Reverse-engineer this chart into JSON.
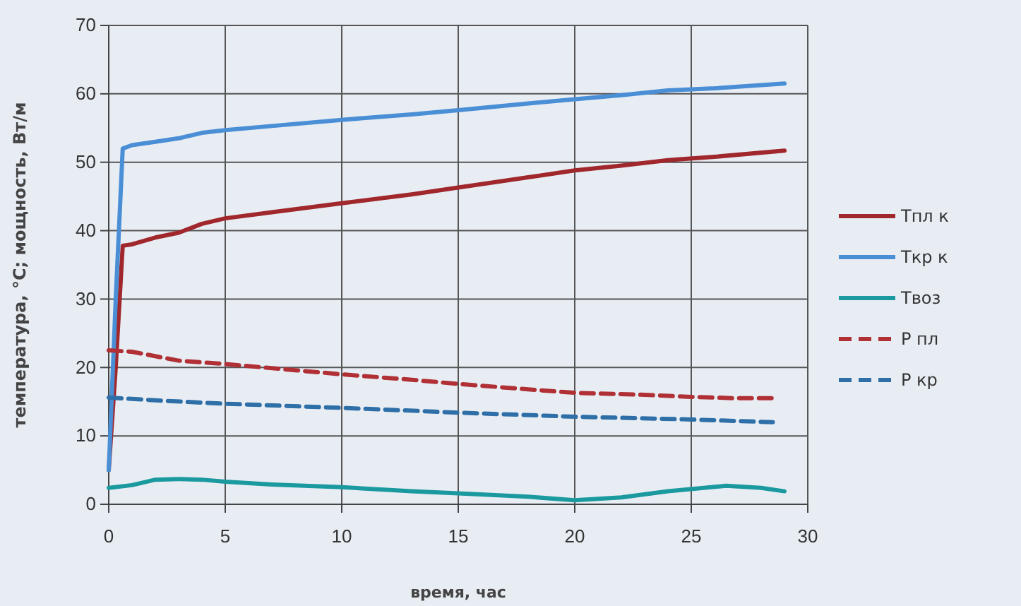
{
  "chart_data": {
    "type": "line",
    "xlabel": "время, час",
    "ylabel": "температура, °C; мощность, Вт/м",
    "xlim": [
      0,
      30
    ],
    "xticks": [
      0,
      5,
      10,
      15,
      20,
      25,
      30
    ],
    "ylim": [
      0,
      70
    ],
    "yticks": [
      0,
      10,
      20,
      30,
      40,
      50,
      60,
      70
    ],
    "grid": true,
    "legend": "right",
    "marker": "none",
    "series": [
      {
        "name": "Tпл к",
        "color": "#a0282d",
        "line_style": "solid",
        "x": [
          0,
          0.3,
          0.6,
          1,
          2,
          3,
          4,
          5,
          7,
          10,
          13,
          15,
          18,
          20,
          22,
          24,
          26,
          29
        ],
        "values": [
          5,
          20,
          37.8,
          38,
          39,
          39.7,
          41,
          41.8,
          42.7,
          44,
          45.3,
          46.3,
          47.8,
          48.8,
          49.5,
          50.3,
          50.8,
          51.7
        ]
      },
      {
        "name": "Tкр к",
        "color": "#4a8fd6",
        "line_style": "solid",
        "x": [
          0,
          0.3,
          0.6,
          1,
          2,
          3,
          4,
          5,
          7,
          10,
          13,
          15,
          18,
          20,
          22,
          24,
          26,
          29
        ],
        "values": [
          5,
          30,
          52,
          52.5,
          53,
          53.5,
          54.3,
          54.7,
          55.3,
          56.2,
          57,
          57.6,
          58.6,
          59.2,
          59.8,
          60.5,
          60.8,
          61.5
        ]
      },
      {
        "name": "Tвоз",
        "color": "#1a9a9e",
        "line_style": "solid",
        "x": [
          0,
          1,
          2,
          3,
          4,
          5,
          7,
          10,
          13,
          15,
          18,
          20,
          22,
          24,
          26.5,
          28,
          29
        ],
        "values": [
          2.4,
          2.8,
          3.6,
          3.7,
          3.6,
          3.3,
          2.9,
          2.5,
          1.9,
          1.6,
          1.1,
          0.6,
          1,
          1.9,
          2.7,
          2.4,
          1.9
        ]
      },
      {
        "name": "Р пл",
        "color": "#b03035",
        "line_style": "dashed",
        "x": [
          0,
          1,
          3,
          5,
          8,
          10,
          13,
          15,
          18,
          20,
          23,
          25,
          27,
          28.5
        ],
        "values": [
          22.5,
          22.3,
          21,
          20.5,
          19.6,
          19,
          18.2,
          17.6,
          16.8,
          16.3,
          16,
          15.7,
          15.5,
          15.5
        ]
      },
      {
        "name": "Р кр",
        "color": "#2e6fa8",
        "line_style": "dashed",
        "x": [
          0,
          2,
          5,
          10,
          15,
          20,
          25,
          28.5
        ],
        "values": [
          15.6,
          15.2,
          14.7,
          14.1,
          13.4,
          12.8,
          12.4,
          12
        ]
      }
    ]
  }
}
